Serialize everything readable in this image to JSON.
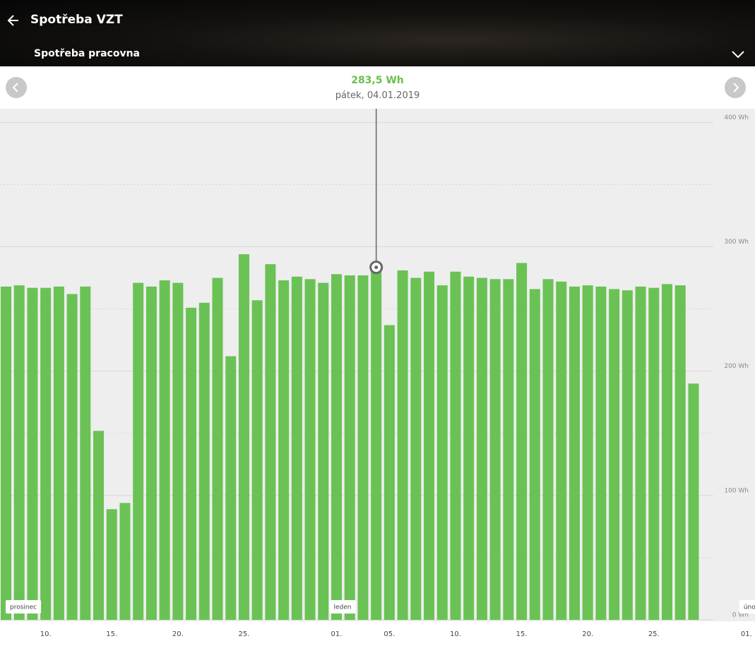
{
  "header": {
    "title": "Spotřeba VZT",
    "subtitle": "Spotřeba pracovna"
  },
  "selection": {
    "value": "283,5 Wh",
    "date": "pátek, 04.01.2019"
  },
  "chart_data": {
    "type": "bar",
    "color": "#6ac255",
    "categories": [
      null,
      null,
      null,
      "10.",
      null,
      null,
      null,
      null,
      "15.",
      null,
      null,
      null,
      null,
      "20.",
      null,
      null,
      null,
      null,
      "25.",
      null,
      null,
      null,
      null,
      null,
      null,
      "01.",
      null,
      null,
      null,
      "05.",
      null,
      null,
      null,
      null,
      "10.",
      null,
      null,
      null,
      null,
      "15.",
      null,
      null,
      null,
      null,
      "20.",
      null,
      null,
      null,
      null,
      "25.",
      null,
      null,
      null,
      null,
      null,
      null,
      "01."
    ],
    "values": [
      268,
      269,
      267,
      267,
      268,
      262,
      268,
      152,
      89,
      94,
      271,
      268,
      273,
      271,
      251,
      255,
      275,
      212,
      294,
      257,
      286,
      273,
      276,
      274,
      271,
      278,
      277,
      277,
      283.5,
      237,
      281,
      275,
      280,
      269,
      280,
      276,
      275,
      274,
      274,
      287,
      266,
      274,
      272,
      268,
      269,
      268,
      266,
      265,
      268,
      267,
      270,
      269,
      190,
      null,
      null,
      null,
      null
    ],
    "ylim": [
      0,
      411
    ],
    "yticks": [
      {
        "value": 0,
        "label": "0 Wh"
      },
      {
        "value": 100,
        "label": "100 Wh"
      },
      {
        "value": 200,
        "label": "200 Wh"
      },
      {
        "value": 300,
        "label": "300 Wh"
      },
      {
        "value": 400,
        "label": "400 Wh"
      }
    ],
    "minor_yticks": [
      50,
      150,
      250,
      350
    ],
    "month_labels": [
      "prosinec",
      "leden",
      "únor"
    ],
    "grid": true
  }
}
